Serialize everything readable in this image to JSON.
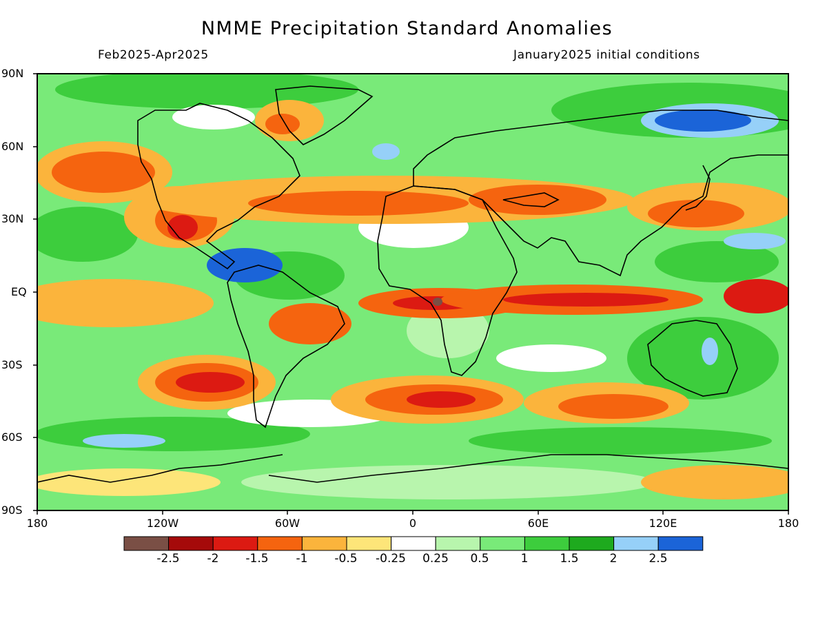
{
  "title": "NMME Precipitation Standard Anomalies",
  "subtitle_left": "Feb2025-Apr2025",
  "subtitle_right": "January2025 initial conditions",
  "lat_labels": [
    "90N",
    "60N",
    "30N",
    "EQ",
    "30S",
    "60S",
    "90S"
  ],
  "lon_labels": [
    "180",
    "120W",
    "60W",
    "0",
    "60E",
    "120E",
    "180"
  ],
  "colorbar": {
    "colors": [
      "#7a4f45",
      "#a50a0a",
      "#dc1a12",
      "#f5640f",
      "#fbb43c",
      "#fde579",
      "#ffffff",
      "#b8f5ad",
      "#79ea79",
      "#3dcd3d",
      "#1eaa1e",
      "#96d0f8",
      "#1b64d8"
    ],
    "labels": [
      "-2.5",
      "-2",
      "-1.5",
      "-1",
      "-0.5",
      "-0.25",
      "0.25",
      "0.5",
      "1",
      "1.5",
      "2",
      "2.5"
    ]
  },
  "colors": {
    "land_outline": "#000000",
    "background_field": "#79ea79"
  }
}
